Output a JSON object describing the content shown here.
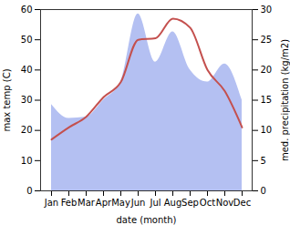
{
  "chart_data": {
    "type": "combo",
    "categories": [
      "Jan",
      "Feb",
      "Mar",
      "Apr",
      "May",
      "Jun",
      "Jul",
      "Aug",
      "Sep",
      "Oct",
      "Nov",
      "Dec"
    ],
    "xlabel": "date (month)",
    "ylabel": "max temp (C)",
    "y2label": "med. precipitation (kg/m2)",
    "ylim": [
      0,
      60
    ],
    "yticks": [
      0,
      10,
      20,
      30,
      40,
      50,
      60
    ],
    "y2lim": [
      0,
      30
    ],
    "y2ticks": [
      0,
      5,
      10,
      15,
      20,
      25,
      30
    ],
    "series": [
      {
        "name": "med. precipitation (kg/m2)",
        "type": "area",
        "axis": "y2",
        "color": "#b4c0f2",
        "values": [
          14.3,
          12,
          12.2,
          15,
          18,
          29.3,
          21.3,
          26.3,
          20,
          18,
          21,
          15
        ]
      },
      {
        "name": "max temp (C)",
        "type": "line",
        "color": "#c4504e",
        "values": [
          17,
          21,
          24.5,
          31,
          36,
          50,
          50.5,
          57,
          54,
          40,
          33,
          21
        ]
      }
    ]
  }
}
